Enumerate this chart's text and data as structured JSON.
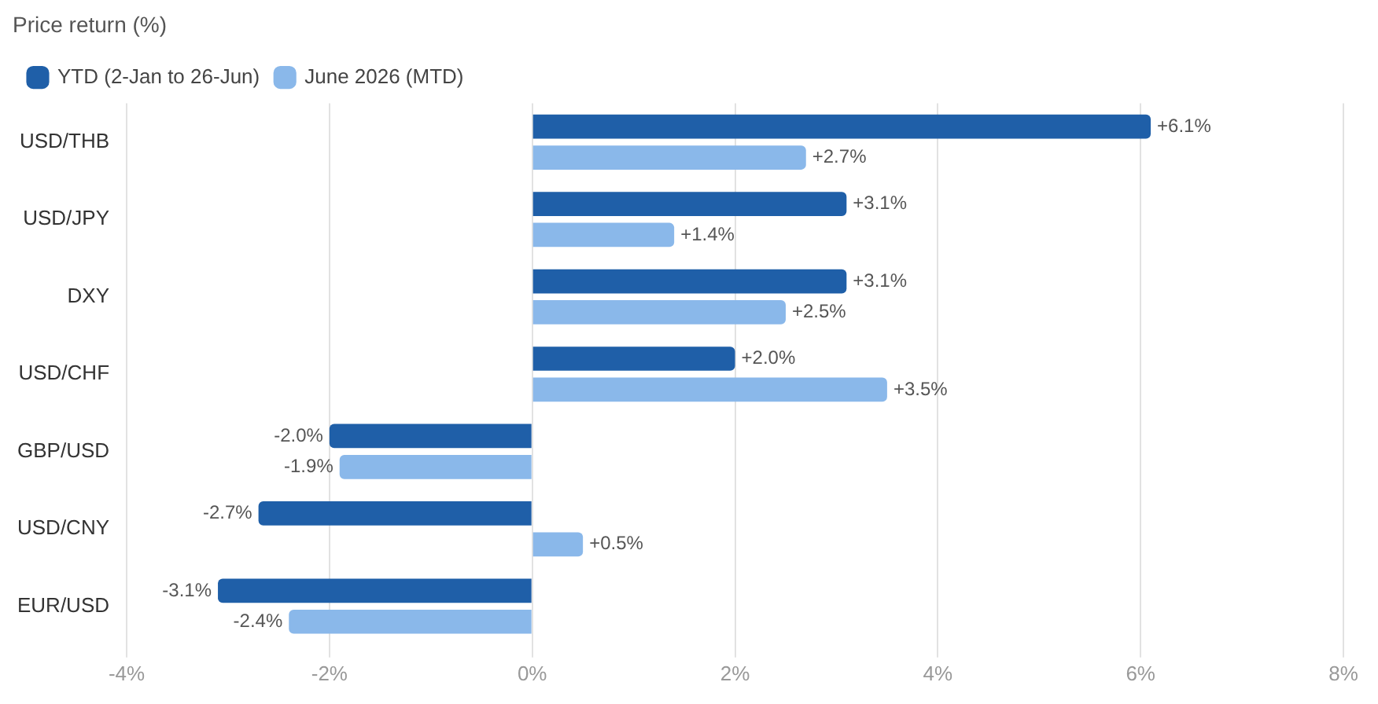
{
  "chart_data": {
    "type": "bar",
    "orientation": "horizontal",
    "title": "Price return (%)",
    "categories": [
      "USD/THB",
      "USD/JPY",
      "DXY",
      "USD/CHF",
      "GBP/USD",
      "USD/CNY",
      "EUR/USD"
    ],
    "series": [
      {
        "name": "YTD (2-Jan to 26-Jun)",
        "color": "#1f5fa8",
        "values": [
          6.1,
          3.1,
          3.1,
          2.0,
          -2.0,
          -2.7,
          -3.1
        ],
        "value_labels": [
          "+6.1%",
          "+3.1%",
          "+3.1%",
          "+2.0%",
          "-2.0%",
          "-2.7%",
          "-3.1%"
        ]
      },
      {
        "name": "June 2026 (MTD)",
        "color": "#8ab8ea",
        "values": [
          2.7,
          1.4,
          2.5,
          3.5,
          -1.9,
          0.5,
          -2.4
        ],
        "value_labels": [
          "+2.7%",
          "+1.4%",
          "+2.5%",
          "+3.5%",
          "-1.9%",
          "+0.5%",
          "-2.4%"
        ]
      }
    ],
    "xlim": [
      -4,
      8
    ],
    "xticks": [
      {
        "value": -4,
        "label": "-4%"
      },
      {
        "value": -2,
        "label": "-2%"
      },
      {
        "value": 0,
        "label": "0%"
      },
      {
        "value": 2,
        "label": "2%"
      },
      {
        "value": 4,
        "label": "4%"
      },
      {
        "value": 6,
        "label": "6%"
      },
      {
        "value": 8,
        "label": "8%"
      }
    ],
    "grid": "x",
    "legend": "top left"
  }
}
